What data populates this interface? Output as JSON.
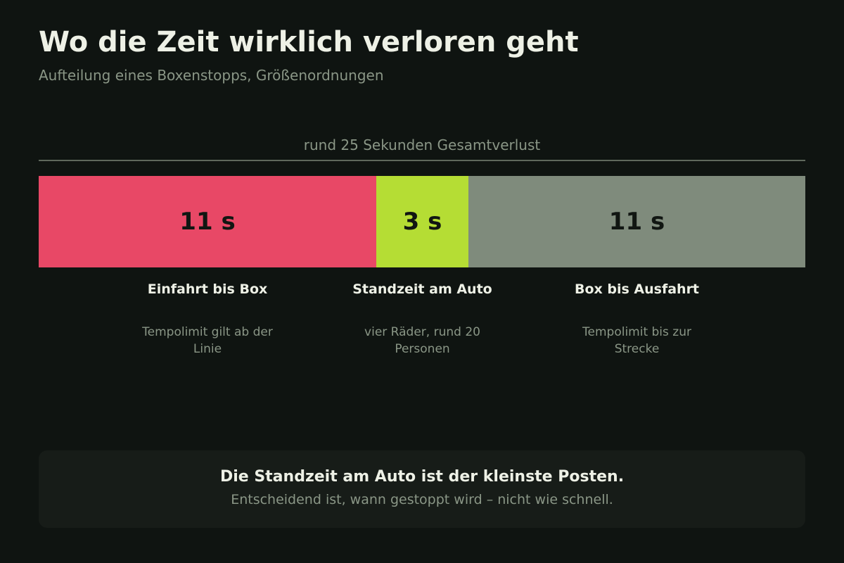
{
  "header": {
    "title": "Wo die Zeit wirklich verloren geht",
    "subtitle": "Aufteilung eines Boxenstopps, Größenordnungen"
  },
  "chart_data": {
    "type": "bar",
    "orientation": "horizontal-stacked",
    "total_label": "rund 25 Sekunden Gesamtverlust",
    "unit": "s",
    "segments": [
      {
        "category": "Einfahrt bis Box",
        "value": 11,
        "value_label": "11 s",
        "note": "Tempolimit gilt ab der Linie",
        "color": "#e84866"
      },
      {
        "category": "Standzeit am Auto",
        "value": 3,
        "value_label": "3 s",
        "note": "vier Räder, rund 20 Personen",
        "color": "#b5dd34"
      },
      {
        "category": "Box bis Ausfahrt",
        "value": 11,
        "value_label": "11 s",
        "note": "Tempolimit bis zur Strecke",
        "color": "#7f8b7c"
      }
    ]
  },
  "callout": {
    "headline": "Die Standzeit am Auto ist der kleinste Posten.",
    "text": "Entscheidend ist, wann gestoppt wird – nicht wie schnell."
  },
  "colors": {
    "background": "#0f1411",
    "panel": "#171c18",
    "text_primary": "#eef1e6",
    "text_muted": "#8a9686"
  }
}
